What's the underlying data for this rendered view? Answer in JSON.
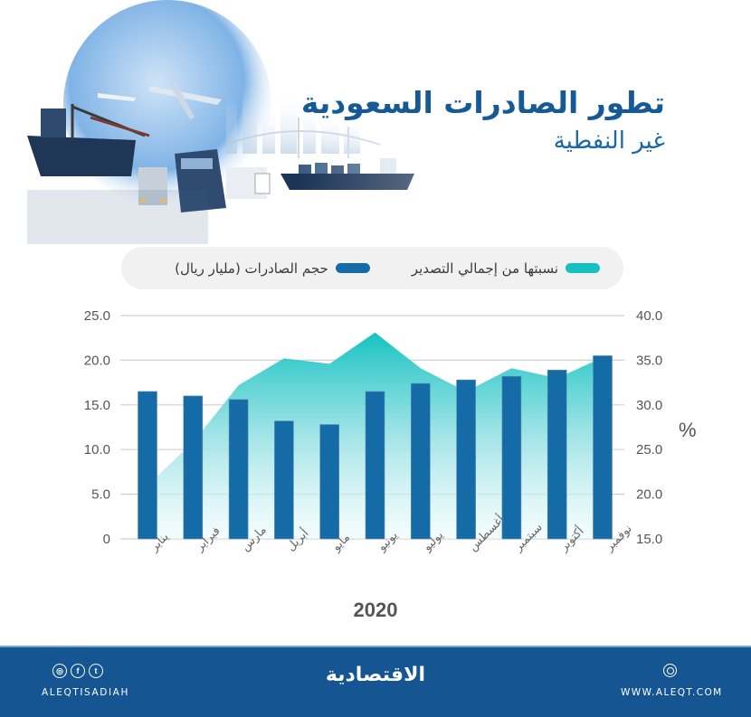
{
  "header": {
    "title": "تطور الصادرات السعودية",
    "subtitle": "غير النفطية"
  },
  "legend": {
    "items": [
      {
        "label": "نسبتها من إجمالي التصدير",
        "color": "#17c0c0",
        "icon": "teal-pill-swatch"
      },
      {
        "label": "حجم الصادرات (مليار ريال)",
        "color": "#156ba6",
        "icon": "blue-pill-swatch"
      }
    ]
  },
  "chart_data": {
    "type": "bar",
    "title": "تطور الصادرات السعودية غير النفطية",
    "xlabel": "2020",
    "ylabel": "حجم الصادرات (مليار ريال)",
    "y2label": "%",
    "categories": [
      "يناير",
      "فبراير",
      "مارس",
      "أبريل",
      "مايو",
      "يونيو",
      "يوليو",
      "أغسطس",
      "سبتمبر",
      "أكتوبر",
      "نوفمبر"
    ],
    "series": [
      {
        "name": "حجم الصادرات (مليار ريال)",
        "type": "bar",
        "axis": "left",
        "color": "#156ba6",
        "values": [
          16.5,
          16.0,
          15.6,
          13.2,
          12.8,
          16.5,
          17.4,
          17.8,
          18.2,
          18.9,
          20.5
        ]
      },
      {
        "name": "نسبتها من إجمالي التصدير",
        "type": "area",
        "axis": "right",
        "color": "#17c0c0",
        "values": [
          21.0,
          25.8,
          32.2,
          35.2,
          34.6,
          38.1,
          34.1,
          31.5,
          34.1,
          33.0,
          35.3
        ]
      }
    ],
    "ylim": [
      0,
      25
    ],
    "y2lim": [
      15,
      40
    ],
    "yticks": [
      "0",
      "5.0",
      "10.0",
      "15.0",
      "20.0",
      "25.0"
    ],
    "y2ticks": [
      "15.0",
      "20.0",
      "25.0",
      "30.0",
      "35.0",
      "40.0"
    ],
    "grid": true,
    "legend_position": "top"
  },
  "footer": {
    "social_icons": [
      "instagram-icon",
      "facebook-icon",
      "twitter-icon"
    ],
    "handle": "ALEQTISADIAH",
    "brand": "الاقتصادية",
    "site": "WWW.ALEQT.COM"
  }
}
